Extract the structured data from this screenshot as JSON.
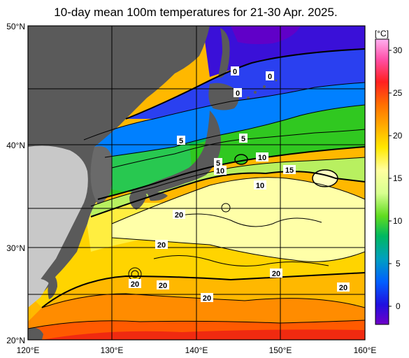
{
  "title": "10-day mean 100m temperatures for 21-30 Apr. 2025.",
  "lat_labels": [
    "50°N",
    "40°N",
    "30°N",
    "20°N"
  ],
  "lon_labels": [
    "120°E",
    "130°E",
    "140°E",
    "150°E",
    "160°E"
  ],
  "colorbar": {
    "unit": "[°C]",
    "ticks": [
      "30",
      "25",
      "20",
      "15",
      "10",
      "5",
      "0"
    ],
    "colors": [
      "#ff9cf0",
      "#ff2a8a",
      "#ff2a2a",
      "#ff6a00",
      "#ff9a00",
      "#ffd400",
      "#ffff40",
      "#ffffa8",
      "#f4ffd0",
      "#c4ff70",
      "#5cd600",
      "#00b850",
      "#00aaa0",
      "#0088ff",
      "#0050ff",
      "#2810d8",
      "#5000c0",
      "#7800c8"
    ]
  },
  "contour_labels": [
    {
      "text": "0"
    },
    {
      "text": "0"
    },
    {
      "text": "0"
    },
    {
      "text": "5"
    },
    {
      "text": "5"
    },
    {
      "text": "5"
    },
    {
      "text": "10"
    },
    {
      "text": "10"
    },
    {
      "text": "10"
    },
    {
      "text": "15"
    },
    {
      "text": "20"
    },
    {
      "text": "20"
    },
    {
      "text": "20"
    },
    {
      "text": "20"
    },
    {
      "text": "20"
    },
    {
      "text": "20"
    },
    {
      "text": "20"
    }
  ]
}
